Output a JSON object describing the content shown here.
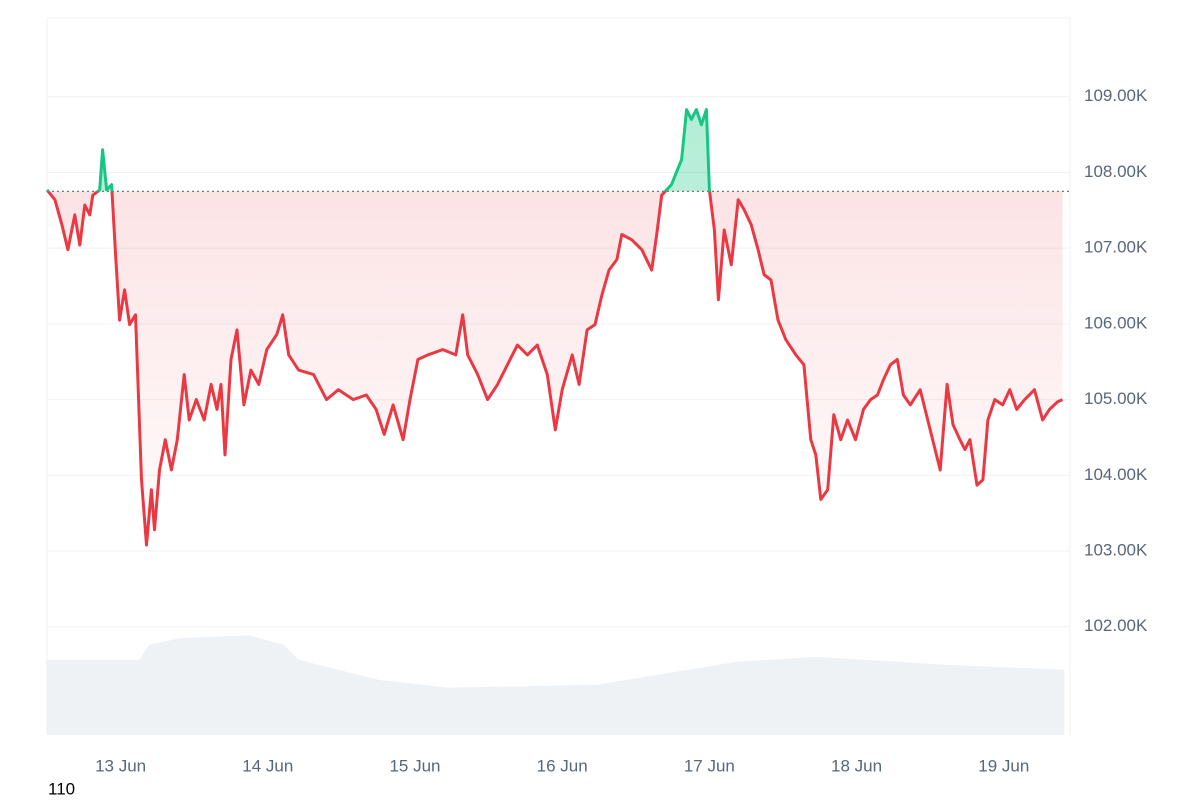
{
  "chart_data": {
    "type": "baseline-area",
    "line_color_above": "#16c784",
    "line_color_below": "#ea3943",
    "baseline": 107750,
    "xlim": [
      12.5,
      19.45
    ],
    "xticks": [
      {
        "value": 13,
        "label": "13 Jun"
      },
      {
        "value": 14,
        "label": "14 Jun"
      },
      {
        "value": 15,
        "label": "15 Jun"
      },
      {
        "value": 16,
        "label": "16 Jun"
      },
      {
        "value": 17,
        "label": "17 Jun"
      },
      {
        "value": 18,
        "label": "18 Jun"
      },
      {
        "value": 19,
        "label": "19 Jun"
      }
    ],
    "ylim": [
      100570,
      110040
    ],
    "yticks": [
      {
        "value": 102000,
        "label": "102.00K"
      },
      {
        "value": 103000,
        "label": "103.00K"
      },
      {
        "value": 104000,
        "label": "104.00K"
      },
      {
        "value": 105000,
        "label": "105.00K"
      },
      {
        "value": 106000,
        "label": "106.00K"
      },
      {
        "value": 107000,
        "label": "107.00K"
      },
      {
        "value": 108000,
        "label": "108.00K"
      },
      {
        "value": 109000,
        "label": "109.00K"
      }
    ],
    "grid": true,
    "x": [
      12.5,
      12.554,
      12.601,
      12.642,
      12.689,
      12.723,
      12.757,
      12.791,
      12.811,
      12.858,
      12.878,
      12.905,
      12.939,
      12.966,
      12.993,
      13.027,
      13.061,
      13.101,
      13.142,
      13.176,
      13.209,
      13.23,
      13.264,
      13.304,
      13.345,
      13.385,
      13.432,
      13.466,
      13.514,
      13.568,
      13.615,
      13.655,
      13.682,
      13.709,
      13.75,
      13.791,
      13.838,
      13.885,
      13.939,
      13.993,
      14.061,
      14.101,
      14.142,
      14.209,
      14.311,
      14.399,
      14.48,
      14.581,
      14.669,
      14.736,
      14.791,
      14.851,
      14.919,
      14.966,
      15.02,
      15.088,
      15.189,
      15.277,
      15.324,
      15.358,
      15.426,
      15.493,
      15.561,
      15.628,
      15.696,
      15.764,
      15.831,
      15.899,
      15.953,
      16.0,
      16.068,
      16.115,
      16.169,
      16.223,
      16.27,
      16.318,
      16.372,
      16.405,
      16.473,
      16.541,
      16.608,
      16.642,
      16.676,
      16.743,
      16.811,
      16.845,
      16.878,
      16.912,
      16.946,
      16.98,
      17.0,
      17.034,
      17.061,
      17.101,
      17.149,
      17.196,
      17.236,
      17.284,
      17.331,
      17.372,
      17.419,
      17.466,
      17.52,
      17.588,
      17.642,
      17.689,
      17.723,
      17.757,
      17.804,
      17.845,
      17.892,
      17.939,
      17.993,
      18.047,
      18.095,
      18.142,
      18.182,
      18.23,
      18.277,
      18.318,
      18.365,
      18.432,
      18.5,
      18.568,
      18.615,
      18.655,
      18.703,
      18.736,
      18.77,
      18.818,
      18.858,
      18.892,
      18.939,
      18.993,
      19.041,
      19.088,
      19.142,
      19.209,
      19.264,
      19.311,
      19.365,
      19.399
    ],
    "values": [
      107770,
      107640,
      107310,
      106980,
      107440,
      107040,
      107570,
      107440,
      107700,
      107770,
      108300,
      107770,
      107840,
      106910,
      106050,
      106450,
      105990,
      106120,
      103940,
      103080,
      103810,
      103280,
      104070,
      104470,
      104070,
      104470,
      105330,
      104730,
      105000,
      104730,
      105200,
      104870,
      105200,
      104270,
      105530,
      105920,
      104930,
      105390,
      105200,
      105660,
      105860,
      106120,
      105590,
      105390,
      105330,
      105000,
      105130,
      105000,
      105060,
      104870,
      104540,
      104930,
      104470,
      105000,
      105530,
      105590,
      105660,
      105590,
      106120,
      105590,
      105330,
      105000,
      105200,
      105460,
      105720,
      105590,
      105720,
      105330,
      104600,
      105130,
      105590,
      105200,
      105920,
      105990,
      106380,
      106710,
      106850,
      107180,
      107110,
      106980,
      106710,
      107180,
      107700,
      107840,
      108170,
      108830,
      108700,
      108830,
      108630,
      108830,
      107770,
      107240,
      106320,
      107240,
      106780,
      107640,
      107510,
      107310,
      106980,
      106650,
      106580,
      106050,
      105790,
      105590,
      105460,
      104470,
      104270,
      103680,
      103810,
      104800,
      104470,
      104730,
      104470,
      104870,
      105000,
      105060,
      105260,
      105460,
      105530,
      105060,
      104930,
      105130,
      104600,
      104070,
      105200,
      104670,
      104470,
      104340,
      104470,
      103870,
      103940,
      104730,
      105000,
      104930,
      105130,
      104870,
      105000,
      105130,
      104730,
      104870,
      104970,
      105000
    ],
    "volume": {
      "color": "#eff2f5",
      "axis": "y2",
      "x": [
        12.5,
        13.128,
        13.196,
        13.399,
        13.872,
        14.108,
        14.209,
        14.75,
        15.223,
        16.236,
        16.912,
        17.182,
        17.723,
        18.061,
        18.601,
        19.412
      ],
      "values": [
        10.5,
        10.5,
        12.6,
        13.5,
        13.9,
        12.6,
        10.5,
        7.7,
        6.6,
        7.0,
        9.3,
        10.2,
        10.9,
        10.5,
        9.8,
        9.1
      ]
    },
    "y2lim": [
      0,
      100
    ],
    "footer_text": "110"
  }
}
